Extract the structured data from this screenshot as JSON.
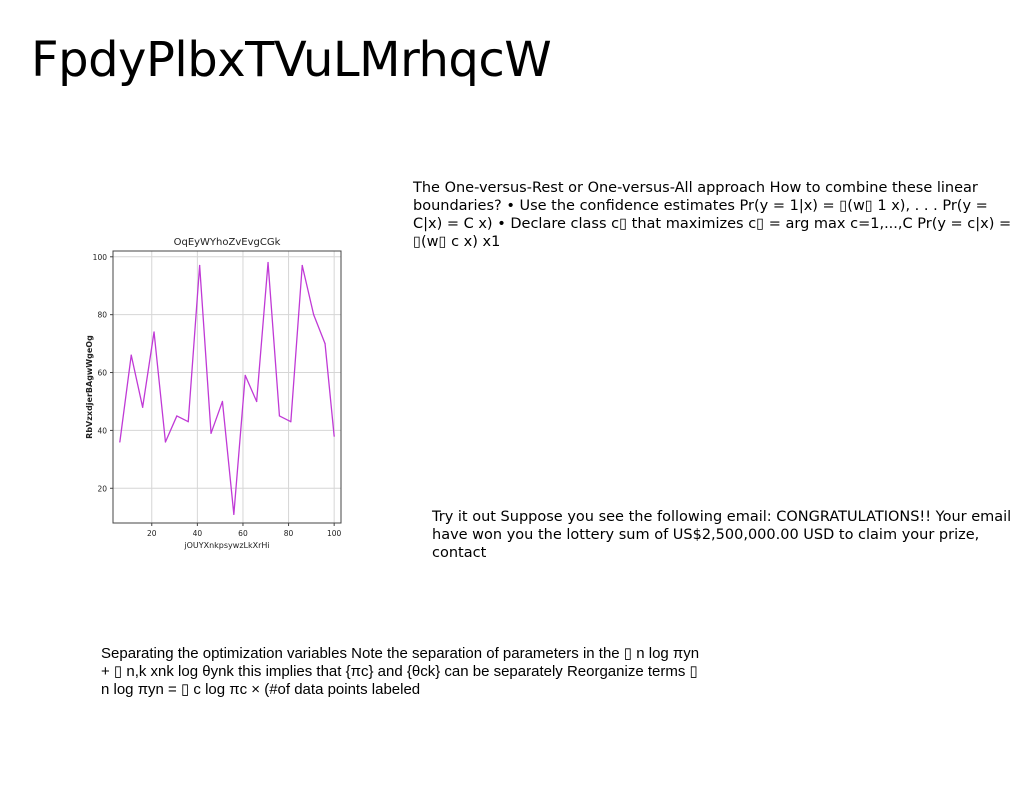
{
  "slide": {
    "title": "FpdyPlbxTVuLMrhqcW",
    "text_blocks": [
      "The One-versus-Rest or One-versus-All approach How to combine these linear boundaries? • Use the confidence estimates Pr(y = 1|x) = ▯(w▯ 1 x), . . . Pr(y = C|x) = C x) • Declare class c▯ that maximizes c▯ = arg max c=1,...,C Pr(y = c|x) = ▯(w▯ c x) x1",
      "Try it out Suppose you see the following email: CONGRATULATIONS!! Your email have won you the lottery sum of US$2,500,000.00 USD to claim your prize, contact",
      "Separating the optimization variables Note the separation of parameters in the ▯ n log πyn + ▯ n,k xnk log θynk this implies that {πc} and {θck} can be separately Reorganize terms ▯ n log πyn = ▯ c log πc × (#of data points labeled"
    ]
  },
  "chart_data": {
    "type": "line",
    "title": "OqEyWYhoZvEvgCGk",
    "xlabel": "jOUYXnkpsywzLkXrHi",
    "ylabel": "RbVzxdjerBAgwWgeOg",
    "x": [
      6,
      11,
      16,
      21,
      26,
      31,
      36,
      41,
      46,
      51,
      56,
      61,
      66,
      71,
      76,
      81,
      86,
      91,
      96,
      100
    ],
    "series": [
      {
        "values": [
          36,
          66,
          48,
          74,
          36,
          45,
          43,
          97,
          39,
          50,
          11,
          59,
          50,
          98,
          45,
          43,
          97,
          80,
          70,
          38
        ]
      }
    ],
    "xlim": [
      3,
      103
    ],
    "ylim": [
      8,
      102
    ],
    "xticks": [
      20,
      40,
      60,
      80,
      100
    ],
    "yticks": [
      20,
      40,
      60,
      80,
      100
    ],
    "grid": true,
    "line_color": "#c03ad6"
  }
}
